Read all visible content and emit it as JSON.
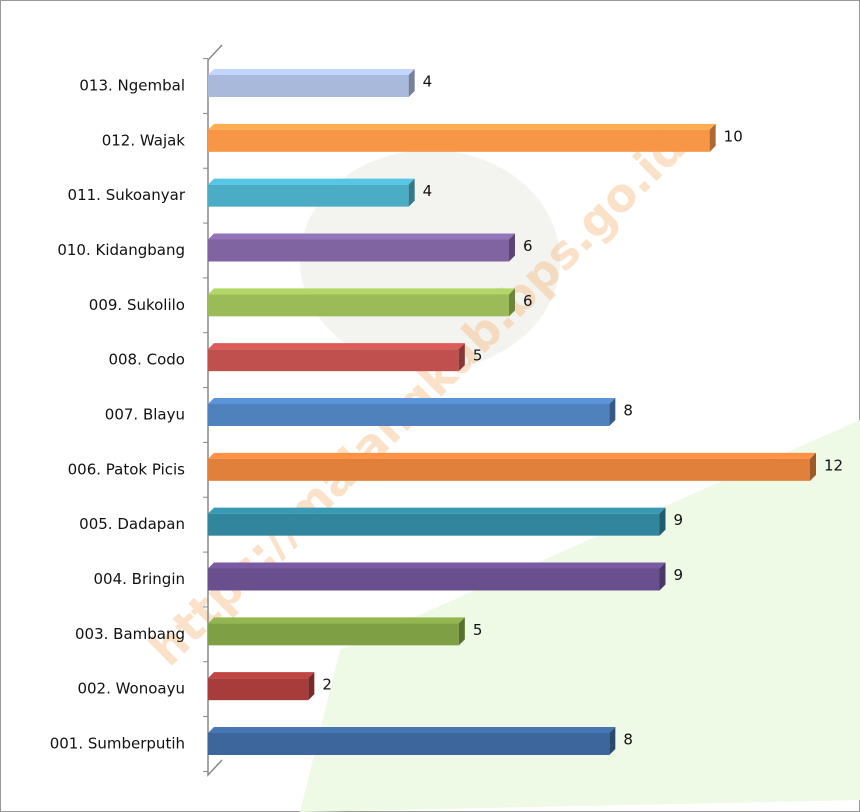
{
  "chart_data": {
    "type": "bar",
    "orientation": "horizontal",
    "watermark": "https://malangkab.bps.go.id",
    "categories": [
      "013. Ngembal",
      "012. Wajak",
      "011. Sukoanyar",
      "010. Kidangbang",
      "009. Sukolilo",
      "008. Codo",
      "007. Blayu",
      "006. Patok Picis",
      "005. Dadapan",
      "004. Bringin",
      "003. Bambang",
      "002. Wonoayu",
      "001. Sumberputih"
    ],
    "values": [
      4,
      10,
      4,
      6,
      6,
      5,
      8,
      12,
      9,
      9,
      5,
      2,
      8
    ],
    "colors": [
      "#a9b9dc",
      "#f79646",
      "#4bacc6",
      "#8064a2",
      "#9bbb59",
      "#c0504d",
      "#4f81bd",
      "#e0803a",
      "#31859c",
      "#6a4f8e",
      "#7f9f45",
      "#a83c3a",
      "#3d679c"
    ]
  }
}
